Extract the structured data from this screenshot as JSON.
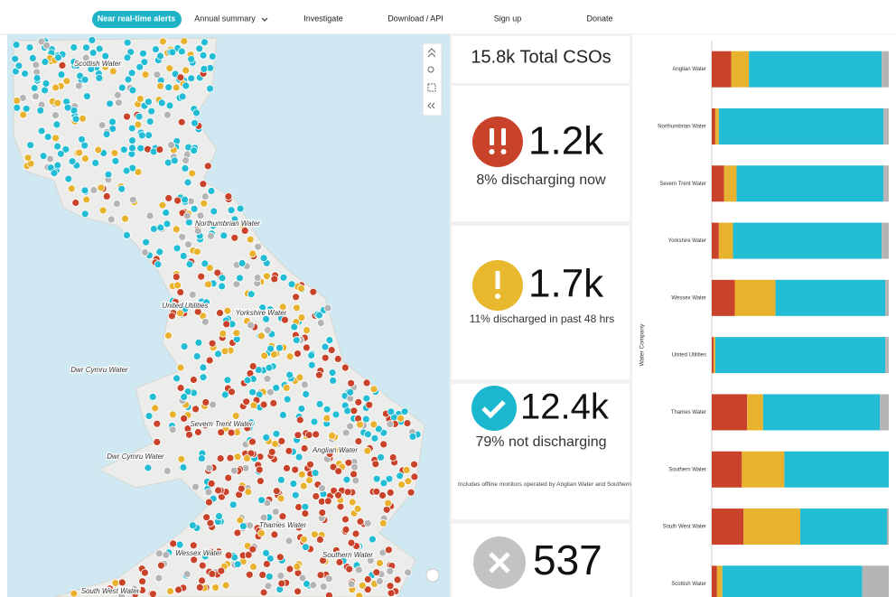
{
  "nav": {
    "items": [
      "Near real-time alerts",
      "Annual summary",
      "Investigate",
      "Download / API",
      "Sign up",
      "Donate"
    ]
  },
  "map": {
    "labels": [
      "Scottish Water",
      "Northumbrian Water",
      "United Utilities",
      "Yorkshire Water",
      "Dwr Cymru Water",
      "Severn Trent Water",
      "Anglian Water",
      "Dwr Cymru Water",
      "Thames Water",
      "Wessex Water",
      "Southern Water",
      "South West Water"
    ]
  },
  "stats": {
    "total": "15.8k Total CSOs",
    "cards": [
      {
        "value": "1.2k",
        "caption": "8% discharging now"
      },
      {
        "value": "1.7k",
        "caption": "11% discharged in past 48 hrs"
      },
      {
        "value": "12.4k",
        "caption": "79% not discharging",
        "note": "Includes offline monitors operated by Anglian Water and Southern Water."
      },
      {
        "value": "537"
      }
    ]
  },
  "chart_data": {
    "type": "stacked-bar-horizontal",
    "y_label": "Water Company",
    "categories": [
      "Anglian Water",
      "Northumbrian Water",
      "Severn Trent Water",
      "Yorkshire Water",
      "Wessex Water",
      "United Utilities",
      "Thames Water",
      "Southern Water",
      "South West Water",
      "Scottish Water"
    ],
    "xlim": [
      0,
      100
    ],
    "series": [
      {
        "color": "#c8432a",
        "values": [
          11,
          2,
          7,
          4,
          13,
          1,
          20,
          17,
          18,
          3
        ]
      },
      {
        "color": "#e8b22f",
        "values": [
          10,
          2,
          7,
          8,
          23,
          1,
          9,
          24,
          32,
          3
        ]
      },
      {
        "color": "#22bcd4",
        "values": [
          75,
          93,
          83,
          84,
          62,
          96,
          66,
          59,
          49,
          79
        ]
      },
      {
        "color": "#b4b4b4",
        "values": [
          4,
          3,
          3,
          4,
          2,
          2,
          5,
          0,
          1,
          15
        ]
      }
    ]
  }
}
